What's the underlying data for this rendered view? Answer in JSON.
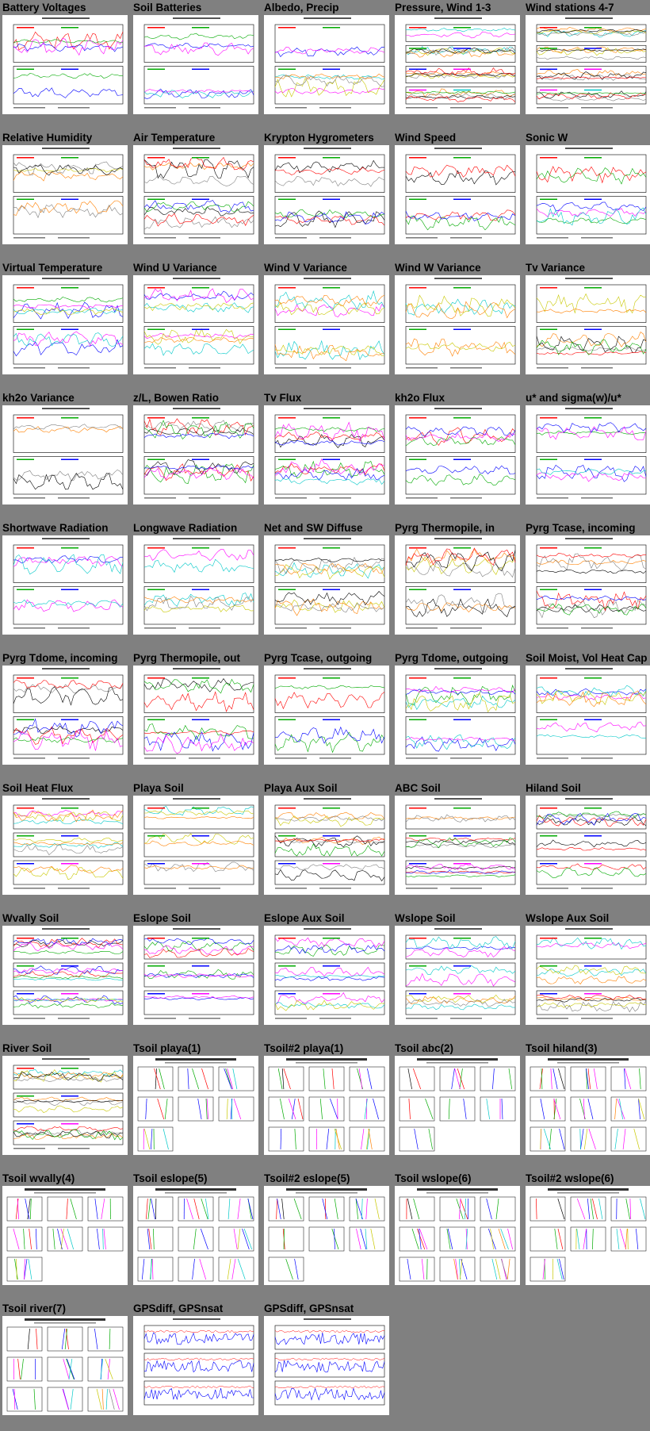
{
  "page": {
    "background": "#808080"
  },
  "plots": [
    {
      "title": "Battery Voltages",
      "kind": "ts",
      "panels": 2
    },
    {
      "title": "Soil Batteries",
      "kind": "ts",
      "panels": 2
    },
    {
      "title": "Albedo, Precip",
      "kind": "ts",
      "panels": 2
    },
    {
      "title": "Pressure, Wind 1-3",
      "kind": "ts",
      "panels": 4
    },
    {
      "title": "Wind stations 4-7",
      "kind": "ts",
      "panels": 4
    },
    {
      "title": "Relative Humidity",
      "kind": "ts",
      "panels": 2
    },
    {
      "title": "Air Temperature",
      "kind": "ts",
      "panels": 2
    },
    {
      "title": "Krypton Hygrometers",
      "kind": "ts",
      "panels": 2
    },
    {
      "title": "Wind Speed",
      "kind": "ts",
      "panels": 2
    },
    {
      "title": "Sonic W",
      "kind": "ts",
      "panels": 2
    },
    {
      "title": "Virtual Temperature",
      "kind": "ts",
      "panels": 2
    },
    {
      "title": "Wind U Variance",
      "kind": "ts",
      "panels": 2
    },
    {
      "title": "Wind V Variance",
      "kind": "ts",
      "panels": 2
    },
    {
      "title": "Wind W Variance",
      "kind": "ts",
      "panels": 2
    },
    {
      "title": "Tv Variance",
      "kind": "ts",
      "panels": 2
    },
    {
      "title": "kh2o Variance",
      "kind": "ts",
      "panels": 2
    },
    {
      "title": "z/L, Bowen Ratio",
      "kind": "ts",
      "panels": 2
    },
    {
      "title": "Tv Flux",
      "kind": "ts",
      "panels": 2
    },
    {
      "title": "kh2o Flux",
      "kind": "ts",
      "panels": 2
    },
    {
      "title": "u* and sigma(w)/u*",
      "kind": "ts",
      "panels": 2
    },
    {
      "title": "Shortwave Radiation",
      "kind": "ts",
      "panels": 2
    },
    {
      "title": "Longwave Radiation",
      "kind": "ts",
      "panels": 2
    },
    {
      "title": "Net and SW Diffuse",
      "kind": "ts",
      "panels": 2
    },
    {
      "title": "Pyrg Thermopile, in",
      "kind": "ts",
      "panels": 2
    },
    {
      "title": "Pyrg Tcase, incoming",
      "kind": "ts",
      "panels": 2
    },
    {
      "title": "Pyrg Tdome, incoming",
      "kind": "ts",
      "panels": 2
    },
    {
      "title": "Pyrg Thermopile, out",
      "kind": "ts",
      "panels": 2
    },
    {
      "title": "Pyrg Tcase, outgoing",
      "kind": "ts",
      "panels": 2
    },
    {
      "title": "Pyrg Tdome, outgoing",
      "kind": "ts",
      "panels": 2
    },
    {
      "title": "Soil Moist, Vol Heat Cap",
      "kind": "ts",
      "panels": 2
    },
    {
      "title": "Soil Heat Flux",
      "kind": "ts",
      "panels": 3
    },
    {
      "title": "Playa Soil",
      "kind": "ts",
      "panels": 3
    },
    {
      "title": "Playa Aux Soil",
      "kind": "ts",
      "panels": 3
    },
    {
      "title": "ABC Soil",
      "kind": "ts",
      "panels": 3
    },
    {
      "title": "Hiland Soil",
      "kind": "ts",
      "panels": 3
    },
    {
      "title": "Wvally Soil",
      "kind": "ts",
      "panels": 3
    },
    {
      "title": "Eslope Soil",
      "kind": "ts",
      "panels": 3
    },
    {
      "title": "Eslope Aux Soil",
      "kind": "ts",
      "panels": 3
    },
    {
      "title": "Wslope Soil",
      "kind": "ts",
      "panels": 3
    },
    {
      "title": "Wslope Aux Soil",
      "kind": "ts",
      "panels": 3
    },
    {
      "title": "River Soil",
      "kind": "ts",
      "panels": 3
    },
    {
      "title": "Tsoil playa(1)",
      "kind": "tsoil",
      "panels": 9
    },
    {
      "title": "Tsoil#2 playa(1)",
      "kind": "tsoil",
      "panels": 9
    },
    {
      "title": "Tsoil abc(2)",
      "kind": "tsoil",
      "panels": 9
    },
    {
      "title": "Tsoil hiland(3)",
      "kind": "tsoil",
      "panels": 9
    },
    {
      "title": "Tsoil wvally(4)",
      "kind": "tsoil",
      "panels": 9
    },
    {
      "title": "Tsoil eslope(5)",
      "kind": "tsoil",
      "panels": 9
    },
    {
      "title": "Tsoil#2 eslope(5)",
      "kind": "tsoil",
      "panels": 9
    },
    {
      "title": "Tsoil wslope(6)",
      "kind": "tsoil",
      "panels": 9
    },
    {
      "title": "Tsoil#2 wslope(6)",
      "kind": "tsoil",
      "panels": 9
    },
    {
      "title": "Tsoil river(7)",
      "kind": "tsoil",
      "panels": 9
    },
    {
      "title": "GPSdiff, GPSnsat",
      "kind": "gps",
      "panels": 3
    },
    {
      "title": "GPSdiff, GPSnsat",
      "kind": "gps",
      "panels": 3
    }
  ],
  "series_colors": [
    "#000000",
    "#ff0000",
    "#00aa00",
    "#0000ff",
    "#ff00ff",
    "#00c8c8",
    "#c8c800",
    "#ff8000",
    "#808080"
  ]
}
